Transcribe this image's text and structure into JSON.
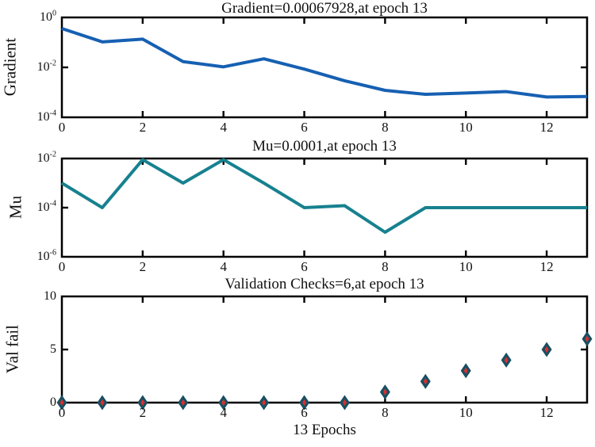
{
  "figure": {
    "background": "#ffffff",
    "axis_color": "#000000",
    "text_color": "#111111"
  },
  "xlabel": "13 Epochs",
  "xlim": [
    0,
    13
  ],
  "x_ticks": [
    0,
    2,
    4,
    6,
    8,
    10,
    12
  ],
  "chart_data": [
    {
      "type": "line",
      "name": "gradient",
      "title": "Gradient=0.00067928,at epoch 13",
      "ylabel": "Gradient",
      "yscale": "log",
      "ylim": [
        0.0001,
        1
      ],
      "y_ticks": [
        {
          "v": 1,
          "label": "10^0"
        },
        {
          "v": 0.01,
          "label": "10^-2"
        },
        {
          "v": 0.0001,
          "label": "10^-4"
        }
      ],
      "color": "#1660b2",
      "x": [
        0,
        1,
        2,
        3,
        4,
        5,
        6,
        7,
        8,
        9,
        10,
        11,
        12,
        13
      ],
      "values": [
        0.36,
        0.105,
        0.135,
        0.017,
        0.0105,
        0.022,
        0.0085,
        0.0029,
        0.0012,
        0.00083,
        0.00094,
        0.00107,
        0.00065,
        0.00067928
      ],
      "final_value": 0.00067928,
      "final_epoch": 13
    },
    {
      "type": "line",
      "name": "mu",
      "title": "Mu=0.0001,at epoch 13",
      "ylabel": "Mu",
      "yscale": "log",
      "ylim": [
        1e-06,
        0.01
      ],
      "y_ticks": [
        {
          "v": 0.01,
          "label": "10^-2"
        },
        {
          "v": 0.0001,
          "label": "10^-4"
        },
        {
          "v": 1e-06,
          "label": "10^-6"
        }
      ],
      "color": "#17818f",
      "x": [
        0,
        1,
        2,
        3,
        4,
        5,
        6,
        7,
        8,
        9,
        10,
        11,
        12,
        13
      ],
      "values": [
        0.001,
        0.0001,
        0.009,
        0.001,
        0.009,
        0.001,
        0.0001,
        0.00012,
        1e-05,
        0.0001,
        0.0001,
        0.0001,
        0.0001,
        0.0001
      ],
      "final_value": 0.0001,
      "final_epoch": 13
    },
    {
      "type": "scatter",
      "name": "valfail",
      "title": "Validation Checks=6,at epoch 13",
      "ylabel": "Val fail",
      "yscale": "linear",
      "ylim": [
        0,
        10
      ],
      "y_ticks": [
        {
          "v": 0,
          "label": "0"
        },
        {
          "v": 5,
          "label": "5"
        },
        {
          "v": 10,
          "label": "10"
        }
      ],
      "marker": {
        "shape": "diamond",
        "fill": "#174f63",
        "inner_shape": "diamond",
        "inner_fill": "#d62f2f"
      },
      "x": [
        0,
        1,
        2,
        3,
        4,
        5,
        6,
        7,
        8,
        9,
        10,
        11,
        12,
        13
      ],
      "values": [
        0,
        0,
        0,
        0,
        0,
        0,
        0,
        0,
        1,
        2,
        3,
        4,
        5,
        6
      ],
      "final_value": 6,
      "final_epoch": 13
    }
  ]
}
